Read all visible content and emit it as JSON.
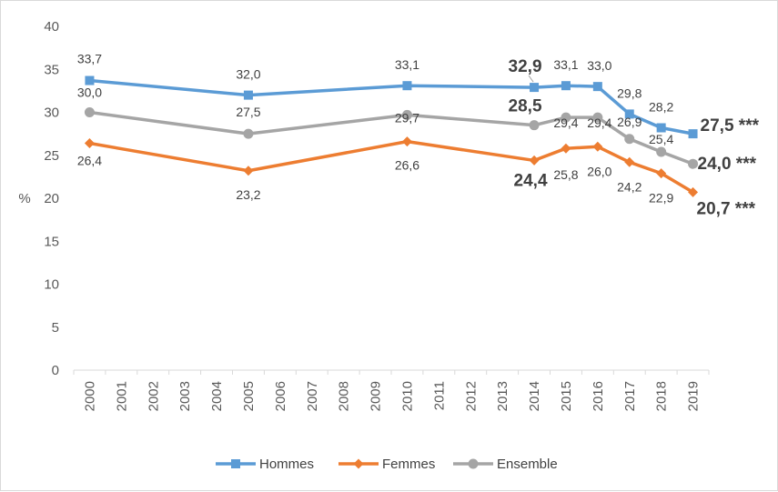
{
  "chart_data": {
    "type": "line",
    "title": "",
    "xlabel": "",
    "ylabel": "%",
    "ylim": [
      0,
      40
    ],
    "yticks": [
      0,
      5,
      10,
      15,
      20,
      25,
      30,
      35,
      40
    ],
    "categories": [
      "2000",
      "2001",
      "2002",
      "2003",
      "2004",
      "2005",
      "2006",
      "2007",
      "2008",
      "2009",
      "2010",
      "2011",
      "2012",
      "2013",
      "2014",
      "2015",
      "2016",
      "2017",
      "2018",
      "2019"
    ],
    "grid": false,
    "legend": "bottom",
    "series": [
      {
        "name": "Hommes",
        "color": "#5b9bd5",
        "marker": "square",
        "points": [
          {
            "x": "2000",
            "y": 33.7,
            "label": "33,7"
          },
          {
            "x": "2005",
            "y": 32.0,
            "label": "32,0"
          },
          {
            "x": "2010",
            "y": 33.1,
            "label": "33,1"
          },
          {
            "x": "2014",
            "y": 32.9,
            "label": "32,9",
            "emphasis": true
          },
          {
            "x": "2015",
            "y": 33.1,
            "label": "33,1"
          },
          {
            "x": "2016",
            "y": 33.0,
            "label": "33,0"
          },
          {
            "x": "2017",
            "y": 29.8,
            "label": "29,8"
          },
          {
            "x": "2018",
            "y": 28.2,
            "label": "28,2"
          },
          {
            "x": "2019",
            "y": 27.5,
            "label": "27,5 ***",
            "emphasis": true
          }
        ]
      },
      {
        "name": "Femmes",
        "color": "#ed7d31",
        "marker": "diamond",
        "points": [
          {
            "x": "2000",
            "y": 26.4,
            "label": "26,4"
          },
          {
            "x": "2005",
            "y": 23.2,
            "label": "23,2"
          },
          {
            "x": "2010",
            "y": 26.6,
            "label": "26,6"
          },
          {
            "x": "2014",
            "y": 24.4,
            "label": "24,4",
            "emphasis": true
          },
          {
            "x": "2015",
            "y": 25.8,
            "label": "25,8"
          },
          {
            "x": "2016",
            "y": 26.0,
            "label": "26,0"
          },
          {
            "x": "2017",
            "y": 24.2,
            "label": "24,2"
          },
          {
            "x": "2018",
            "y": 22.9,
            "label": "22,9"
          },
          {
            "x": "2019",
            "y": 20.7,
            "label": "20,7 ***",
            "emphasis": true
          }
        ]
      },
      {
        "name": "Ensemble",
        "color": "#a5a5a5",
        "marker": "circle",
        "points": [
          {
            "x": "2000",
            "y": 30.0,
            "label": "30,0"
          },
          {
            "x": "2005",
            "y": 27.5,
            "label": "27,5"
          },
          {
            "x": "2010",
            "y": 29.7,
            "label": "29,7"
          },
          {
            "x": "2014",
            "y": 28.5,
            "label": "28,5",
            "emphasis": true
          },
          {
            "x": "2015",
            "y": 29.4,
            "label": "29,4"
          },
          {
            "x": "2016",
            "y": 29.4,
            "label": "29,4"
          },
          {
            "x": "2017",
            "y": 26.9,
            "label": "26,9"
          },
          {
            "x": "2018",
            "y": 25.4,
            "label": "25,4"
          },
          {
            "x": "2019",
            "y": 24.0,
            "label": "24,0 ***",
            "emphasis": true
          }
        ]
      }
    ]
  }
}
